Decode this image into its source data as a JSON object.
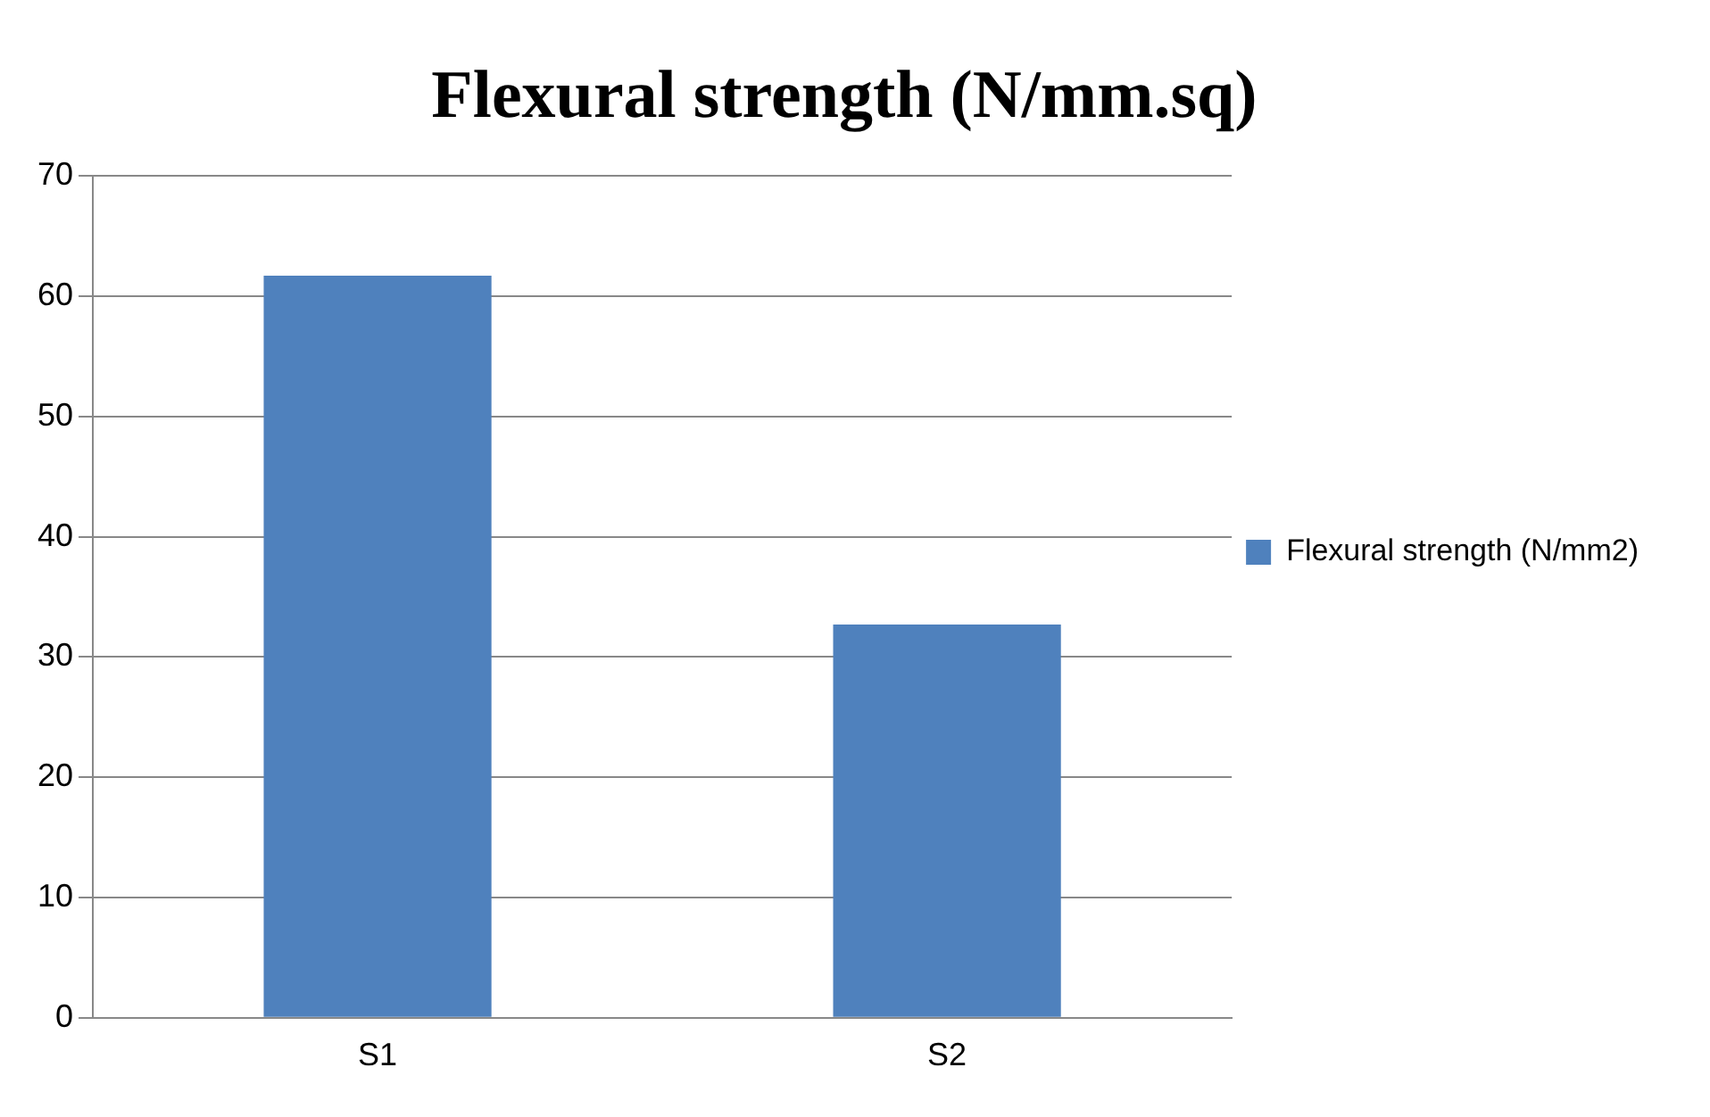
{
  "chart_data": {
    "type": "bar",
    "title": "Flexural strength (N/mm.sq)",
    "categories": [
      "S1",
      "S2"
    ],
    "series": [
      {
        "name": "Flexural strength (N/mm2)",
        "color": "#4f81bd",
        "values": [
          61.7,
          32.7
        ]
      }
    ],
    "ylim": [
      0,
      70
    ],
    "yticks": [
      0,
      10,
      20,
      30,
      40,
      50,
      60,
      70
    ],
    "grid": "y",
    "legend": "right"
  }
}
